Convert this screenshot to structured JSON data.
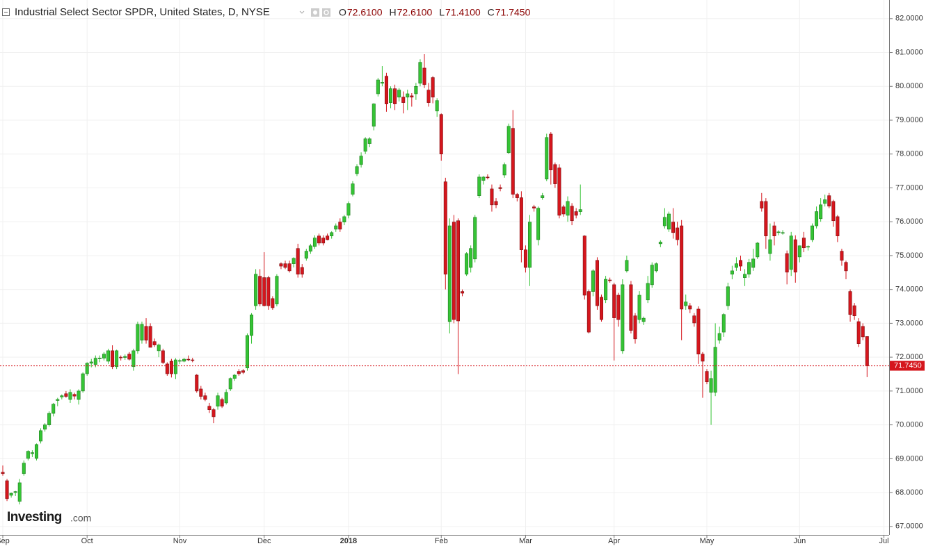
{
  "chart_data": {
    "type": "candlestick",
    "title": "Industrial Select Sector SPDR, United States, D, NYSE",
    "ohlc_legend": [
      {
        "label": "O",
        "value_label": "72.6100"
      },
      {
        "label": "H",
        "value_label": "72.6100"
      },
      {
        "label": "L",
        "value_label": "71.4100"
      },
      {
        "label": "C",
        "value_label": "71.7450"
      }
    ],
    "logo": {
      "brand": "Investing",
      "suffix": ".com"
    },
    "last_close_label": "71.7450",
    "up_color": "#35c435",
    "up_border": "#1f7a1f",
    "down_color": "#d5161d",
    "down_border": "#7a0d10",
    "grid": true,
    "ylim": [
      66.75,
      82.55
    ],
    "yticks": [
      {
        "value": 67,
        "label": "67.0000"
      },
      {
        "value": 68,
        "label": "68.0000"
      },
      {
        "value": 69,
        "label": "69.0000"
      },
      {
        "value": 70,
        "label": "70.0000"
      },
      {
        "value": 71,
        "label": "71.0000"
      },
      {
        "value": 72,
        "label": "72.0000"
      },
      {
        "value": 73,
        "label": "73.0000"
      },
      {
        "value": 74,
        "label": "74.0000"
      },
      {
        "value": 75,
        "label": "75.0000"
      },
      {
        "value": 76,
        "label": "76.0000"
      },
      {
        "value": 77,
        "label": "77.0000"
      },
      {
        "value": 78,
        "label": "78.0000"
      },
      {
        "value": 79,
        "label": "79.0000"
      },
      {
        "value": 80,
        "label": "80.0000"
      },
      {
        "value": 81,
        "label": "81.0000"
      },
      {
        "value": 82,
        "label": "82.0000"
      }
    ],
    "categories": [
      "Sep",
      null,
      null,
      null,
      null,
      null,
      null,
      null,
      null,
      null,
      null,
      null,
      null,
      null,
      null,
      null,
      null,
      null,
      null,
      null,
      "Oct",
      null,
      null,
      null,
      null,
      null,
      null,
      null,
      null,
      null,
      null,
      null,
      null,
      null,
      null,
      null,
      null,
      null,
      null,
      null,
      null,
      null,
      "Nov",
      null,
      null,
      null,
      null,
      null,
      null,
      null,
      null,
      null,
      null,
      null,
      null,
      null,
      null,
      null,
      null,
      null,
      null,
      null,
      "Dec",
      null,
      null,
      null,
      null,
      null,
      null,
      null,
      null,
      null,
      null,
      null,
      null,
      null,
      null,
      null,
      null,
      null,
      null,
      null,
      "2018",
      null,
      null,
      null,
      null,
      null,
      null,
      null,
      null,
      null,
      null,
      null,
      null,
      null,
      null,
      null,
      null,
      null,
      null,
      null,
      null,
      null,
      "Feb",
      null,
      null,
      null,
      null,
      null,
      null,
      null,
      null,
      null,
      null,
      null,
      null,
      null,
      null,
      null,
      null,
      null,
      null,
      null,
      "Mar",
      null,
      null,
      null,
      null,
      null,
      null,
      null,
      null,
      null,
      null,
      null,
      null,
      null,
      null,
      null,
      null,
      null,
      null,
      null,
      null,
      "Apr",
      null,
      null,
      null,
      null,
      null,
      null,
      null,
      null,
      null,
      null,
      null,
      null,
      null,
      null,
      null,
      null,
      null,
      null,
      null,
      null,
      null,
      "May",
      null,
      null,
      null,
      null,
      null,
      null,
      null,
      null,
      null,
      null,
      null,
      null,
      null,
      null,
      null,
      null,
      null,
      null,
      null,
      null,
      null,
      "Jun",
      null,
      null,
      null,
      null,
      null,
      null,
      null,
      null,
      null,
      null,
      null,
      null,
      null,
      null,
      null,
      null,
      null,
      null,
      null,
      "Jul"
    ],
    "open": [
      68.6,
      68.35,
      67.92,
      68.0,
      67.74,
      68.56,
      69.01,
      69.15,
      69.01,
      69.52,
      69.87,
      70.0,
      70.34,
      70.72,
      70.82,
      70.92,
      70.75,
      70.9,
      70.75,
      71.0,
      71.51,
      71.82,
      71.78,
      71.95,
      71.97,
      71.88,
      72.19,
      71.72,
      72.0,
      71.99,
      72.09,
      71.72,
      72.19,
      72.5,
      72.91,
      72.91,
      72.46,
      72.19,
      72.19,
      71.8,
      71.88,
      71.51,
      71.88,
      71.88,
      71.94,
      71.92,
      71.47,
      71.06,
      70.86,
      70.55,
      70.45,
      70.55,
      70.75,
      70.65,
      71.06,
      71.37,
      71.58,
      71.6,
      71.68,
      72.64,
      73.52,
      74.39,
      74.35,
      74.35,
      73.73,
      73.57,
      74.76,
      74.76,
      74.76,
      74.76,
      75.21,
      74.65,
      74.92,
      75.13,
      75.27,
      75.58,
      75.52,
      75.58,
      75.58,
      75.78,
      75.99,
      75.99,
      76.19,
      76.81,
      77.42,
      77.69,
      78.08,
      78.31,
      78.82,
      79.78,
      80.09,
      80.3,
      79.52,
      79.93,
      79.68,
      79.68,
      79.68,
      79.72,
      79.78,
      80.09,
      80.54,
      79.89,
      80.26,
      79.27,
      79.17,
      77.18,
      73.05,
      75.99,
      76.03,
      73.94,
      74.45,
      74.65,
      74.9,
      76.77,
      77.22,
      77.32,
      76.97,
      76.6,
      77.01,
      77.38,
      78.04,
      78.76,
      76.81,
      76.71,
      75.17,
      74.65,
      76.44,
      75.47,
      76.71,
      77.26,
      78.59,
      77.69,
      77.59,
      76.44,
      76.19,
      76.46,
      76.3,
      76.3,
      75.58,
      73.94,
      73.94,
      74.86,
      73.77,
      73.69,
      74.28,
      74.14,
      73.83,
      72.19,
      74.55,
      74.14,
      73.22,
      73.11,
      73.05,
      73.69,
      74.14,
      74.55,
      75.35,
      75.88,
      75.78,
      75.99,
      75.82,
      75.88,
      73.52,
      73.52,
      73.22,
      73.42,
      72.09,
      71.58,
      70.96,
      70.96,
      72.5,
      72.74,
      73.52,
      74.45,
      74.65,
      74.86,
      74.35,
      74.45,
      74.65,
      74.96,
      76.6,
      76.6,
      75.06,
      75.88,
      75.68,
      75.68,
      75.06,
      74.59,
      75.47,
      74.96,
      75.52,
      75.25,
      75.47,
      75.88,
      76.09,
      76.54,
      76.77,
      76.6,
      76.15,
      75.13,
      74.8,
      73.94,
      73.52,
      73.05,
      72.91,
      72.61,
      null,
      null,
      null,
      null
    ],
    "high": [
      68.8,
      68.4,
      68.0,
      68.05,
      68.4,
      68.95,
      69.25,
      69.25,
      69.45,
      69.9,
      70.05,
      70.4,
      70.65,
      70.8,
      70.9,
      71.0,
      71.05,
      70.95,
      71.05,
      71.55,
      71.85,
      71.95,
      72.05,
      72.05,
      72.15,
      72.25,
      72.35,
      72.22,
      72.05,
      72.08,
      72.15,
      72.25,
      73.05,
      73.05,
      73.15,
      73.0,
      72.55,
      72.4,
      72.25,
      71.85,
      71.95,
      71.97,
      71.95,
      71.98,
      72.05,
      71.98,
      71.5,
      71.15,
      70.95,
      70.65,
      70.5,
      70.95,
      70.8,
      71.05,
      71.4,
      71.5,
      71.65,
      71.65,
      72.7,
      73.3,
      74.6,
      74.6,
      75.1,
      74.4,
      73.8,
      74.45,
      74.8,
      74.85,
      74.85,
      74.95,
      75.35,
      74.75,
      75.2,
      75.35,
      75.6,
      75.65,
      75.6,
      75.65,
      75.72,
      75.95,
      76.1,
      76.2,
      76.6,
      77.2,
      77.7,
      78.05,
      78.5,
      78.5,
      79.5,
      80.25,
      80.6,
      80.4,
      80.0,
      80.05,
      79.95,
      79.85,
      79.9,
      79.8,
      80.1,
      80.8,
      80.95,
      80.1,
      80.3,
      79.65,
      79.2,
      77.3,
      76.1,
      76.2,
      76.1,
      74.0,
      75.1,
      75.3,
      76.2,
      77.4,
      77.35,
      77.4,
      77.1,
      76.7,
      77.1,
      77.75,
      78.9,
      79.3,
      76.85,
      76.9,
      75.3,
      76.2,
      76.5,
      76.45,
      76.85,
      78.6,
      78.65,
      77.75,
      77.7,
      76.5,
      76.75,
      76.55,
      76.4,
      77.1,
      75.6,
      74.0,
      74.6,
      74.95,
      73.85,
      74.4,
      74.35,
      74.2,
      73.9,
      74.3,
      75.0,
      74.25,
      73.3,
      73.95,
      73.2,
      74.4,
      74.8,
      74.8,
      75.45,
      76.4,
      76.3,
      76.4,
      76.0,
      76.05,
      73.85,
      73.6,
      73.3,
      73.5,
      72.15,
      71.65,
      71.6,
      73.0,
      72.9,
      73.3,
      74.2,
      74.7,
      74.95,
      75.0,
      74.6,
      74.9,
      75.2,
      75.4,
      76.85,
      76.7,
      75.95,
      76.0,
      75.75,
      75.75,
      75.15,
      75.7,
      75.6,
      75.3,
      75.7,
      75.3,
      75.95,
      76.45,
      76.7,
      76.8,
      76.85,
      76.65,
      76.2,
      75.2,
      74.85,
      74.0,
      73.6,
      73.15,
      73.0,
      72.61,
      null,
      null,
      null,
      null
    ],
    "low": [
      68.5,
      67.75,
      67.85,
      67.9,
      67.65,
      68.5,
      68.95,
      69.05,
      68.95,
      69.45,
      69.8,
      69.95,
      70.25,
      70.55,
      70.75,
      70.8,
      70.65,
      70.75,
      70.6,
      70.95,
      71.45,
      71.7,
      71.7,
      71.85,
      71.9,
      71.8,
      71.65,
      71.65,
      71.9,
      71.92,
      71.9,
      71.6,
      72.1,
      72.4,
      72.4,
      72.3,
      72.3,
      72.0,
      71.8,
      71.45,
      71.4,
      71.35,
      71.8,
      71.85,
      71.88,
      71.85,
      70.95,
      70.75,
      70.7,
      70.35,
      70.05,
      70.45,
      70.5,
      70.6,
      71.0,
      71.3,
      71.45,
      71.5,
      71.6,
      72.4,
      73.4,
      73.5,
      73.5,
      73.4,
      73.4,
      73.5,
      74.6,
      74.6,
      74.5,
      74.65,
      74.35,
      74.35,
      74.85,
      75.05,
      75.2,
      75.3,
      75.3,
      75.45,
      75.5,
      75.7,
      75.7,
      75.9,
      76.1,
      76.75,
      77.35,
      77.6,
      78.0,
      78.2,
      78.7,
      79.7,
      80.0,
      79.25,
      79.35,
      79.3,
      79.55,
      79.2,
      79.3,
      79.4,
      79.6,
      80.0,
      79.95,
      79.4,
      79.5,
      79.1,
      77.8,
      74.0,
      72.7,
      73.0,
      71.5,
      73.8,
      74.4,
      74.5,
      74.8,
      76.7,
      77.1,
      77.25,
      76.3,
      76.4,
      76.9,
      77.3,
      78.0,
      76.7,
      76.6,
      74.8,
      74.5,
      74.1,
      76.3,
      75.3,
      76.65,
      77.2,
      77.1,
      77.0,
      76.1,
      76.15,
      76.0,
      75.9,
      76.1,
      76.2,
      73.7,
      72.7,
      73.8,
      73.4,
      73.05,
      73.6,
      74.2,
      71.9,
      72.9,
      72.1,
      74.5,
      72.7,
      72.4,
      73.0,
      72.95,
      73.6,
      74.05,
      74.5,
      75.25,
      75.8,
      75.7,
      75.5,
      75.3,
      72.5,
      73.4,
      73.3,
      72.9,
      71.8,
      70.8,
      71.2,
      70.0,
      70.85,
      72.4,
      72.6,
      73.4,
      74.3,
      74.55,
      74.55,
      74.1,
      74.35,
      74.55,
      74.9,
      76.3,
      75.2,
      74.85,
      75.3,
      75.6,
      75.62,
      74.15,
      74.4,
      74.2,
      74.8,
      75.1,
      75.15,
      75.4,
      75.8,
      76.0,
      76.45,
      76.4,
      75.85,
      75.4,
      74.7,
      74.3,
      73.05,
      73.1,
      72.3,
      72.5,
      71.41,
      null,
      null,
      null,
      null
    ],
    "close": [
      68.56,
      67.82,
      67.98,
      68.03,
      68.29,
      68.87,
      69.22,
      69.18,
      69.42,
      69.83,
      70.0,
      70.34,
      70.61,
      70.75,
      70.86,
      70.84,
      70.96,
      70.85,
      71.0,
      71.51,
      71.82,
      71.86,
      71.97,
      71.97,
      72.09,
      72.19,
      71.72,
      72.19,
      71.99,
      72.02,
      71.94,
      72.19,
      72.97,
      72.97,
      72.5,
      72.29,
      72.36,
      72.36,
      71.84,
      71.51,
      71.51,
      71.92,
      71.9,
      71.94,
      71.92,
      71.9,
      71.0,
      70.84,
      70.75,
      70.45,
      70.24,
      70.86,
      70.55,
      70.96,
      71.37,
      71.47,
      71.51,
      71.55,
      72.64,
      73.25,
      74.45,
      73.57,
      73.52,
      73.52,
      73.46,
      74.39,
      74.69,
      74.65,
      74.55,
      74.92,
      74.45,
      74.45,
      75.13,
      75.29,
      75.52,
      75.37,
      75.37,
      75.47,
      75.68,
      75.88,
      75.78,
      76.15,
      76.54,
      77.12,
      77.63,
      77.94,
      78.45,
      78.45,
      79.48,
      80.19,
      80.12,
      79.48,
      79.93,
      79.48,
      79.89,
      79.52,
      79.78,
      79.68,
      80.0,
      80.71,
      80.05,
      79.52,
      79.68,
      79.58,
      78.0,
      74.45,
      75.88,
      73.11,
      73.07,
      73.89,
      75.06,
      75.21,
      76.13,
      77.32,
      77.32,
      77.3,
      76.5,
      76.5,
      76.98,
      77.69,
      78.82,
      76.81,
      76.71,
      75.17,
      74.65,
      75.99,
      76.4,
      76.4,
      76.77,
      78.49,
      77.53,
      77.12,
      76.19,
      76.23,
      76.6,
      76.03,
      76.19,
      76.36,
      73.83,
      72.74,
      74.55,
      73.52,
      73.11,
      74.3,
      74.26,
      73.16,
      73.11,
      74.14,
      74.86,
      72.79,
      72.54,
      73.83,
      73.15,
      74.18,
      74.72,
      74.76,
      75.4,
      76.13,
      76.23,
      75.68,
      75.47,
      73.42,
      73.63,
      73.42,
      73.01,
      72.09,
      71.88,
      71.27,
      71.37,
      72.29,
      72.7,
      73.26,
      74.08,
      74.55,
      74.76,
      74.69,
      74.45,
      74.8,
      74.9,
      75.37,
      76.4,
      75.58,
      75.47,
      75.58,
      75.7,
      75.68,
      74.51,
      75.58,
      74.51,
      75.29,
      75.23,
      75.27,
      75.88,
      76.3,
      76.5,
      76.65,
      76.46,
      76.03,
      75.58,
      74.86,
      74.55,
      73.26,
      73.22,
      72.4,
      72.6,
      71.745,
      null,
      null,
      null,
      null
    ]
  }
}
